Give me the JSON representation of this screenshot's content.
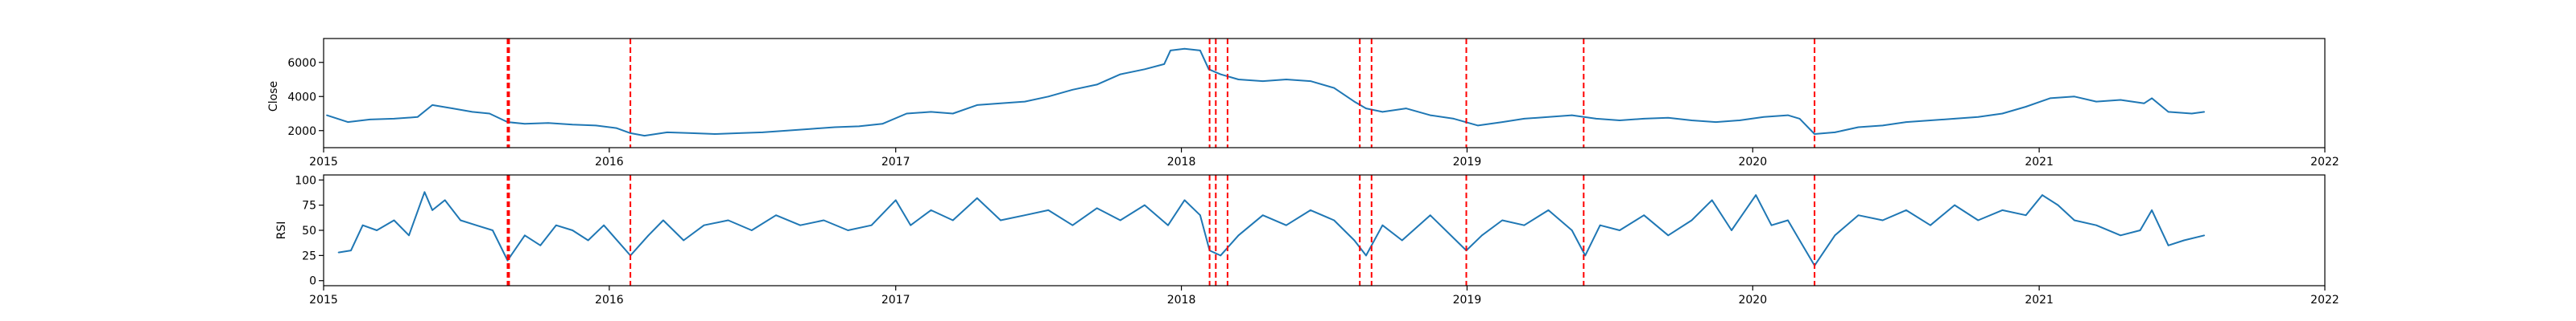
{
  "chart_data": [
    {
      "type": "line",
      "title": "",
      "xlabel": "",
      "ylabel": "Close",
      "xlim": [
        "2015-01-01",
        "2022-01-01"
      ],
      "ylim": [
        1000,
        7400
      ],
      "yticks": [
        2000,
        4000,
        6000
      ],
      "ytick_labels": [
        "2000",
        "4000",
        "6000"
      ],
      "xticks": [
        "2015-01-01",
        "2016-01-01",
        "2017-01-01",
        "2018-01-01",
        "2019-01-01",
        "2020-01-01",
        "2021-01-01",
        "2022-01-01"
      ],
      "xtick_labels": [
        "2015",
        "2016",
        "2017",
        "2018",
        "2019",
        "2020",
        "2021",
        "2022"
      ],
      "grid": false,
      "line_color": "#1f77b4",
      "series": [
        {
          "x": [
            "2015-01-05",
            "2015-02-01",
            "2015-03-01",
            "2015-04-01",
            "2015-05-01",
            "2015-05-20",
            "2015-06-15",
            "2015-07-10",
            "2015-08-01",
            "2015-08-24",
            "2015-09-15",
            "2015-10-15",
            "2015-11-15",
            "2015-12-15",
            "2016-01-10",
            "2016-01-28",
            "2016-02-15",
            "2016-03-15",
            "2016-04-15",
            "2016-05-15",
            "2016-06-15",
            "2016-07-15",
            "2016-08-15",
            "2016-09-15",
            "2016-10-15",
            "2016-11-15",
            "2016-12-15",
            "2017-01-15",
            "2017-02-15",
            "2017-03-15",
            "2017-04-15",
            "2017-05-15",
            "2017-06-15",
            "2017-07-15",
            "2017-08-15",
            "2017-09-15",
            "2017-10-15",
            "2017-11-15",
            "2017-12-10",
            "2017-12-18",
            "2018-01-05",
            "2018-01-25",
            "2018-02-05",
            "2018-02-20",
            "2018-03-15",
            "2018-04-15",
            "2018-05-15",
            "2018-06-15",
            "2018-07-15",
            "2018-08-10",
            "2018-08-25",
            "2018-09-15",
            "2018-10-15",
            "2018-11-15",
            "2018-12-15",
            "2019-01-15",
            "2019-02-15",
            "2019-03-15",
            "2019-04-15",
            "2019-05-15",
            "2019-06-15",
            "2019-07-15",
            "2019-08-15",
            "2019-09-15",
            "2019-10-15",
            "2019-11-15",
            "2019-12-15",
            "2020-01-15",
            "2020-02-15",
            "2020-03-01",
            "2020-03-20",
            "2020-04-15",
            "2020-05-15",
            "2020-06-15",
            "2020-07-15",
            "2020-08-15",
            "2020-09-15",
            "2020-10-15",
            "2020-11-15",
            "2020-12-15",
            "2021-01-15",
            "2021-02-15",
            "2021-03-15",
            "2021-04-15",
            "2021-05-15",
            "2021-05-25",
            "2021-06-15",
            "2021-07-15",
            "2021-07-31"
          ],
          "values": [
            2900,
            2500,
            2650,
            2700,
            2800,
            3500,
            3300,
            3100,
            3000,
            2500,
            2400,
            2450,
            2350,
            2300,
            2150,
            1850,
            1700,
            1900,
            1850,
            1800,
            1850,
            1900,
            2000,
            2100,
            2200,
            2250,
            2400,
            3000,
            3100,
            3000,
            3500,
            3600,
            3700,
            4000,
            4400,
            4700,
            5300,
            5600,
            5900,
            6700,
            6800,
            6700,
            5600,
            5300,
            5000,
            4900,
            5000,
            4900,
            4500,
            3700,
            3300,
            3100,
            3300,
            2900,
            2700,
            2300,
            2500,
            2700,
            2800,
            2900,
            2700,
            2600,
            2700,
            2750,
            2600,
            2500,
            2600,
            2800,
            2900,
            2700,
            1800,
            1900,
            2200,
            2300,
            2500,
            2600,
            2700,
            2800,
            3000,
            3400,
            3900,
            4000,
            3700,
            3800,
            3600,
            3900,
            3100,
            3000,
            3100
          ]
        }
      ]
    },
    {
      "type": "line",
      "title": "",
      "xlabel": "",
      "ylabel": "RSI",
      "xlim": [
        "2015-01-01",
        "2022-01-01"
      ],
      "ylim": [
        -5,
        105
      ],
      "yticks": [
        0,
        25,
        50,
        75,
        100
      ],
      "ytick_labels": [
        "0",
        "25",
        "50",
        "75",
        "100"
      ],
      "xticks": [
        "2015-01-01",
        "2016-01-01",
        "2017-01-01",
        "2018-01-01",
        "2019-01-01",
        "2020-01-01",
        "2021-01-01",
        "2022-01-01"
      ],
      "xtick_labels": [
        "2015",
        "2016",
        "2017",
        "2018",
        "2019",
        "2020",
        "2021",
        "2022"
      ],
      "grid": false,
      "line_color": "#1f77b4",
      "series": [
        {
          "x": [
            "2015-01-20",
            "2015-02-05",
            "2015-02-20",
            "2015-03-10",
            "2015-04-01",
            "2015-04-20",
            "2015-05-10",
            "2015-05-20",
            "2015-06-05",
            "2015-06-25",
            "2015-07-15",
            "2015-08-05",
            "2015-08-24",
            "2015-09-15",
            "2015-10-05",
            "2015-10-25",
            "2015-11-15",
            "2015-12-05",
            "2015-12-25",
            "2016-01-28",
            "2016-02-20",
            "2016-03-10",
            "2016-04-05",
            "2016-05-01",
            "2016-06-01",
            "2016-07-01",
            "2016-08-01",
            "2016-09-01",
            "2016-10-01",
            "2016-11-01",
            "2016-12-01",
            "2017-01-01",
            "2017-01-20",
            "2017-02-15",
            "2017-03-15",
            "2017-04-15",
            "2017-05-15",
            "2017-06-15",
            "2017-07-15",
            "2017-08-15",
            "2017-09-15",
            "2017-10-15",
            "2017-11-15",
            "2017-12-15",
            "2018-01-05",
            "2018-01-25",
            "2018-02-06",
            "2018-02-20",
            "2018-03-15",
            "2018-04-15",
            "2018-05-15",
            "2018-06-15",
            "2018-07-15",
            "2018-08-10",
            "2018-08-25",
            "2018-09-15",
            "2018-10-10",
            "2018-11-15",
            "2018-12-31",
            "2019-01-20",
            "2019-02-15",
            "2019-03-15",
            "2019-04-15",
            "2019-05-15",
            "2019-06-01",
            "2019-06-20",
            "2019-07-15",
            "2019-08-15",
            "2019-09-15",
            "2019-10-15",
            "2019-11-10",
            "2019-12-05",
            "2020-01-05",
            "2020-01-25",
            "2020-02-15",
            "2020-03-01",
            "2020-03-20",
            "2020-04-15",
            "2020-05-15",
            "2020-06-15",
            "2020-07-15",
            "2020-08-15",
            "2020-09-15",
            "2020-10-15",
            "2020-11-15",
            "2020-12-15",
            "2021-01-05",
            "2021-01-25",
            "2021-02-15",
            "2021-03-15",
            "2021-04-15",
            "2021-05-10",
            "2021-05-25",
            "2021-06-15",
            "2021-07-05",
            "2021-07-31"
          ],
          "values": [
            28,
            30,
            55,
            50,
            60,
            45,
            88,
            70,
            80,
            60,
            55,
            50,
            20,
            45,
            35,
            55,
            50,
            40,
            55,
            25,
            45,
            60,
            40,
            55,
            60,
            50,
            65,
            55,
            60,
            50,
            55,
            80,
            55,
            70,
            60,
            82,
            60,
            65,
            70,
            55,
            72,
            60,
            75,
            55,
            80,
            65,
            30,
            25,
            45,
            65,
            55,
            70,
            60,
            40,
            25,
            55,
            40,
            65,
            30,
            45,
            60,
            55,
            70,
            50,
            25,
            55,
            50,
            65,
            45,
            60,
            80,
            50,
            85,
            55,
            60,
            40,
            15,
            45,
            65,
            60,
            70,
            55,
            75,
            60,
            70,
            65,
            85,
            75,
            60,
            55,
            45,
            50,
            70,
            35,
            40,
            45
          ]
        }
      ]
    }
  ],
  "event_lines": {
    "color": "#ff0000",
    "dates": [
      "2015-08-24",
      "2015-08-25",
      "2015-08-26",
      "2016-01-28",
      "2018-02-06",
      "2018-02-14",
      "2018-03-01",
      "2018-08-17",
      "2018-09-01",
      "2018-12-31",
      "2019-05-30",
      "2020-03-20"
    ]
  }
}
